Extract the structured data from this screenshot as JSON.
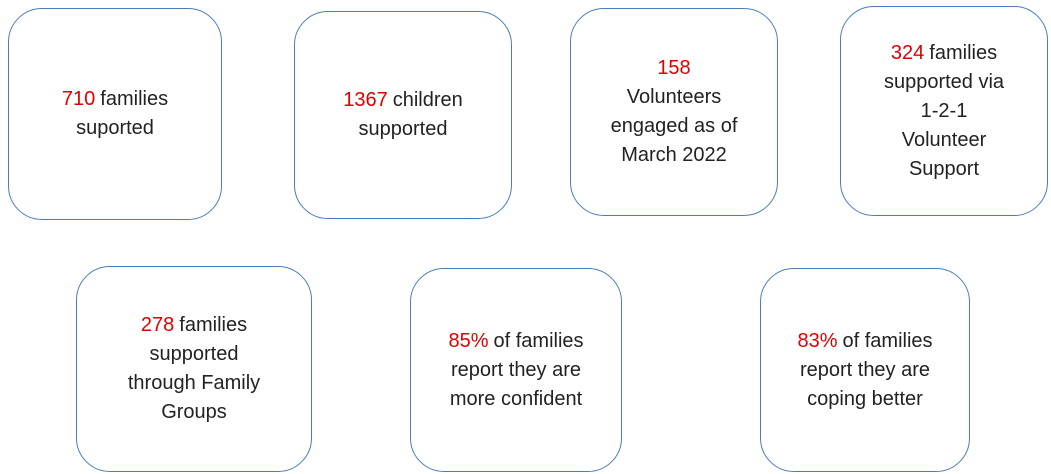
{
  "boxes": [
    {
      "highlight": "710",
      "rest": "families",
      "lines": [
        "suported"
      ]
    },
    {
      "highlight": "1367",
      "rest": "children",
      "lines": [
        "supported"
      ]
    },
    {
      "highlight": "158",
      "lines": [
        "Volunteers",
        "engaged as of",
        "March 2022"
      ]
    },
    {
      "highlight": "324",
      "rest": "families",
      "lines": [
        "supported via",
        "1-2-1",
        "Volunteer",
        "Support"
      ]
    },
    {
      "highlight": "278",
      "rest": "families",
      "lines": [
        "supported",
        "through Family",
        "Groups"
      ]
    },
    {
      "highlight": "85%",
      "rest": "of families",
      "lines": [
        "report they are",
        "more confident"
      ]
    },
    {
      "highlight": "83%",
      "rest": "of families",
      "lines": [
        "report they are",
        "coping better"
      ]
    }
  ]
}
